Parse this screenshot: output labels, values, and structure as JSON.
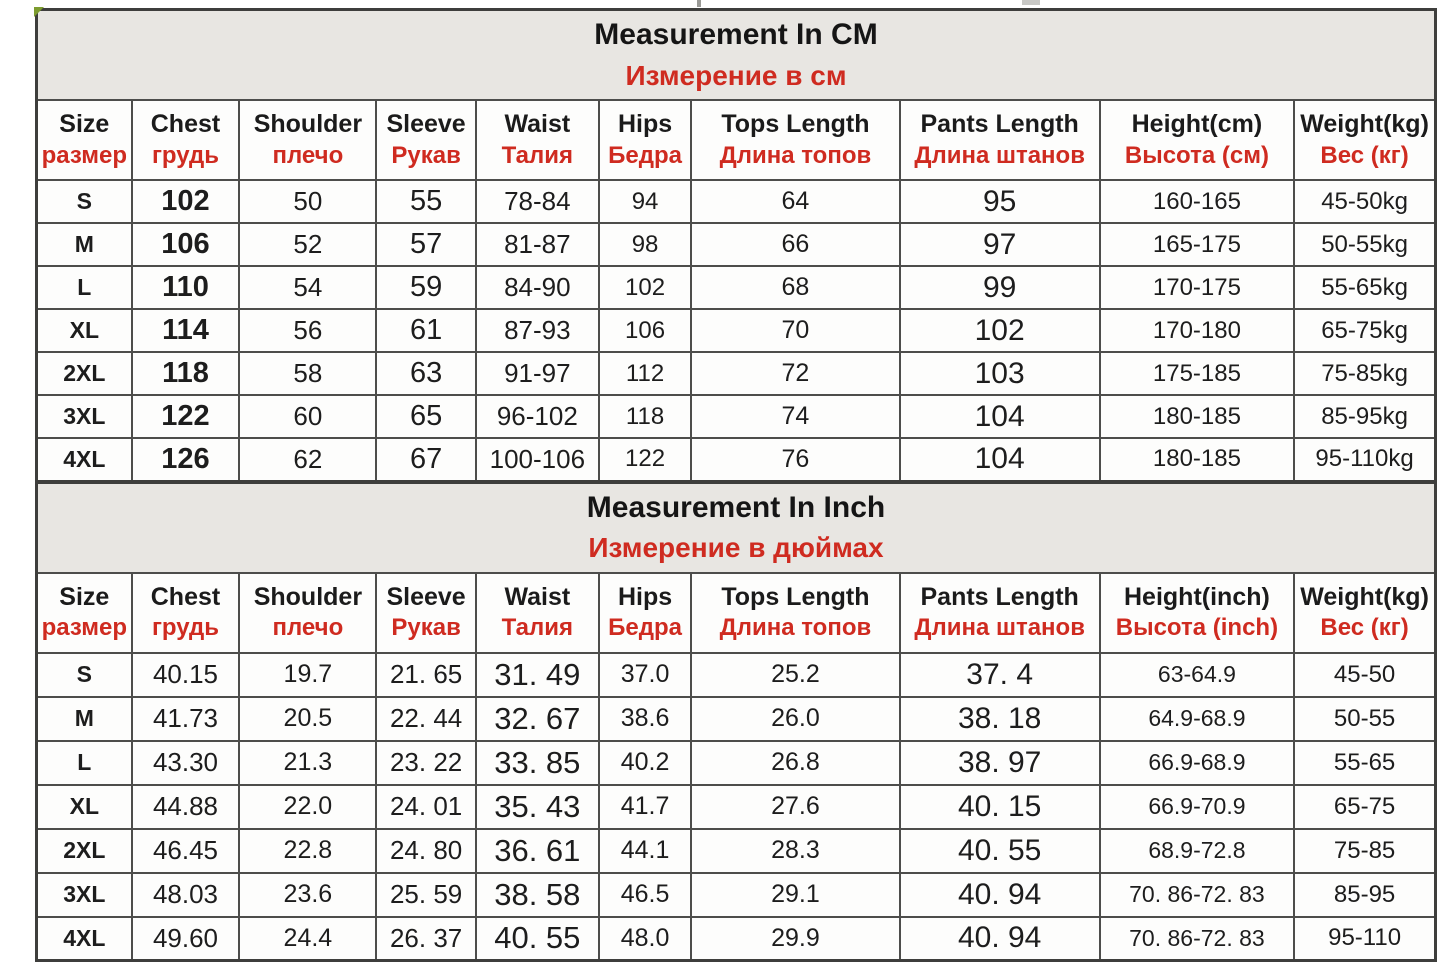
{
  "colors": {
    "accent_red": "#cf2b20",
    "text_black": "#1d1d1d",
    "title_band_bg": "#e8e6e2",
    "cell_bg": "#fdfdfc",
    "grid_border": "#4d4d4b",
    "corner_mark_green": "#7d9c2f"
  },
  "tables": [
    {
      "id": "cm",
      "title_en": "Measurement In CM",
      "title_ru": "Измерение в см",
      "headers": [
        {
          "en": "Size",
          "ru": "размер"
        },
        {
          "en": "Chest",
          "ru": "грудь"
        },
        {
          "en": "Shoulder",
          "ru": "плечо"
        },
        {
          "en": "Sleeve",
          "ru": "Рукав"
        },
        {
          "en": "Waist",
          "ru": "Талия"
        },
        {
          "en": "Hips",
          "ru": "Бедра"
        },
        {
          "en": "Tops Length",
          "ru": "Длина топов"
        },
        {
          "en": "Pants Length",
          "ru": "Длина штанов"
        },
        {
          "en": "Height(cm)",
          "ru": "Высота (см)"
        },
        {
          "en": "Weight(kg)",
          "ru": "Вес (кг)"
        }
      ],
      "rows": [
        [
          "S",
          "102",
          "50",
          "55",
          "78-84",
          "94",
          "64",
          "95",
          "160-165",
          "45-50kg"
        ],
        [
          "M",
          "106",
          "52",
          "57",
          "81-87",
          "98",
          "66",
          "97",
          "165-175",
          "50-55kg"
        ],
        [
          "L",
          "110",
          "54",
          "59",
          "84-90",
          "102",
          "68",
          "99",
          "170-175",
          "55-65kg"
        ],
        [
          "XL",
          "114",
          "56",
          "61",
          "87-93",
          "106",
          "70",
          "102",
          "170-180",
          "65-75kg"
        ],
        [
          "2XL",
          "118",
          "58",
          "63",
          "91-97",
          "112",
          "72",
          "103",
          "175-185",
          "75-85kg"
        ],
        [
          "3XL",
          "122",
          "60",
          "65",
          "96-102",
          "118",
          "74",
          "104",
          "180-185",
          "85-95kg"
        ],
        [
          "4XL",
          "126",
          "62",
          "67",
          "100-106",
          "122",
          "76",
          "104",
          "180-185",
          "95-110kg"
        ]
      ]
    },
    {
      "id": "inch",
      "title_en": "Measurement In Inch",
      "title_ru": "Измерение в дюймах",
      "headers": [
        {
          "en": "Size",
          "ru": "размер"
        },
        {
          "en": "Chest",
          "ru": "грудь"
        },
        {
          "en": "Shoulder",
          "ru": "плечо"
        },
        {
          "en": "Sleeve",
          "ru": "Рукав"
        },
        {
          "en": "Waist",
          "ru": "Талия"
        },
        {
          "en": "Hips",
          "ru": "Бедра"
        },
        {
          "en": "Tops Length",
          "ru": "Длина топов"
        },
        {
          "en": "Pants Length",
          "ru": "Длина штанов"
        },
        {
          "en": "Height(inch)",
          "ru": "Высота (inch)"
        },
        {
          "en": "Weight(kg)",
          "ru": "Вес (кг)"
        }
      ],
      "rows": [
        [
          "S",
          "40.15",
          "19.7",
          "21. 65",
          "31. 49",
          "37.0",
          "25.2",
          "37. 4",
          "63-64.9",
          "45-50"
        ],
        [
          "M",
          "41.73",
          "20.5",
          "22. 44",
          "32. 67",
          "38.6",
          "26.0",
          "38. 18",
          "64.9-68.9",
          "50-55"
        ],
        [
          "L",
          "43.30",
          "21.3",
          "23. 22",
          "33. 85",
          "40.2",
          "26.8",
          "38. 97",
          "66.9-68.9",
          "55-65"
        ],
        [
          "XL",
          "44.88",
          "22.0",
          "24. 01",
          "35. 43",
          "41.7",
          "27.6",
          "40. 15",
          "66.9-70.9",
          "65-75"
        ],
        [
          "2XL",
          "46.45",
          "22.8",
          "24. 80",
          "36. 61",
          "44.1",
          "28.3",
          "40. 55",
          "68.9-72.8",
          "75-85"
        ],
        [
          "3XL",
          "48.03",
          "23.6",
          "25. 59",
          "38. 58",
          "46.5",
          "29.1",
          "40. 94",
          "70. 86-72. 83",
          "85-95"
        ],
        [
          "4XL",
          "49.60",
          "24.4",
          "26. 37",
          "40. 55",
          "48.0",
          "29.9",
          "40. 94",
          "70. 86-72. 83",
          "95-110"
        ]
      ]
    }
  ]
}
